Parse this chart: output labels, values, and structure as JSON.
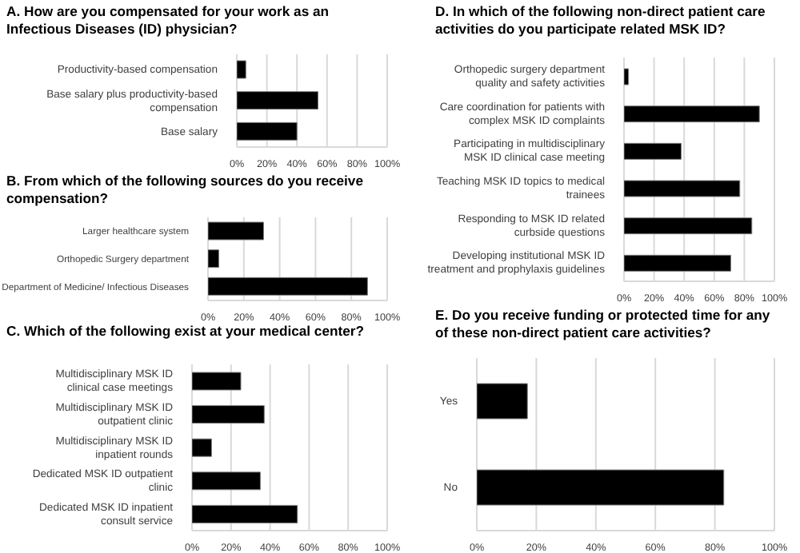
{
  "chart_data": [
    {
      "type": "bar",
      "orientation": "horizontal",
      "title": "A. How are you compensated for your work as an Infectious Diseases (ID) physician?",
      "categories": [
        "Productivity-based compensation",
        "Base salary plus productivity-based compensation",
        "Base salary"
      ],
      "values": [
        6,
        54,
        40
      ],
      "color": "#000000",
      "xlim": [
        0,
        100
      ],
      "xticks": [
        {
          "value": 0,
          "label": "0%"
        },
        {
          "value": 20,
          "label": "20%"
        },
        {
          "value": 40,
          "label": "40%"
        },
        {
          "value": 60,
          "label": "60%"
        },
        {
          "value": 80,
          "label": "80%"
        },
        {
          "value": 100,
          "label": "100%"
        }
      ],
      "grid": "x",
      "legend": false
    },
    {
      "type": "bar",
      "orientation": "horizontal",
      "title": "B. From which of the following sources do you receive compensation?",
      "categories": [
        "Larger healthcare system",
        "Orthopedic Surgery department",
        "Department of Medicine/ Infectious Diseases"
      ],
      "values": [
        31,
        6,
        89
      ],
      "color": "#000000",
      "xlim": [
        0,
        100
      ],
      "xticks": [
        {
          "value": 0,
          "label": "0%"
        },
        {
          "value": 20,
          "label": "20%"
        },
        {
          "value": 40,
          "label": "40%"
        },
        {
          "value": 60,
          "label": "60%"
        },
        {
          "value": 80,
          "label": "80%"
        },
        {
          "value": 100,
          "label": "100%"
        }
      ],
      "grid": "x",
      "legend": false
    },
    {
      "type": "bar",
      "orientation": "horizontal",
      "title": "C. Which of the following exist at your medical center?",
      "categories": [
        "Multidisciplinary MSK ID clinical case meetings",
        "Multidisciplinary MSK ID outpatient clinic",
        "Multidisciplinary MSK ID inpatient rounds",
        "Dedicated MSK ID outpatient clinic",
        "Dedicated MSK ID inpatient consult service"
      ],
      "values": [
        25,
        37,
        10,
        35,
        54
      ],
      "color": "#000000",
      "xlim": [
        0,
        100
      ],
      "xticks": [
        {
          "value": 0,
          "label": "0%"
        },
        {
          "value": 20,
          "label": "20%"
        },
        {
          "value": 40,
          "label": "40%"
        },
        {
          "value": 60,
          "label": "60%"
        },
        {
          "value": 80,
          "label": "80%"
        },
        {
          "value": 100,
          "label": "100%"
        }
      ],
      "grid": "x",
      "legend": false
    },
    {
      "type": "bar",
      "orientation": "horizontal",
      "title": "D. In which of the following non-direct patient care activities do you participate related MSK ID?",
      "categories": [
        "Orthopedic surgery department quality and safety activities",
        "Care coordination for patients with complex MSK ID complaints",
        "Participating in multidisciplinary MSK ID clinical case meeting",
        "Teaching MSK ID topics to medical trainees",
        "Responding to MSK ID related curbside questions",
        "Developing institutional MSK ID treatment and prophylaxis guidelines"
      ],
      "values": [
        3,
        90,
        38,
        77,
        85,
        71
      ],
      "color": "#000000",
      "xlim": [
        0,
        100
      ],
      "xticks": [
        {
          "value": 0,
          "label": "0%"
        },
        {
          "value": 20,
          "label": "20%"
        },
        {
          "value": 40,
          "label": "40%"
        },
        {
          "value": 60,
          "label": "60%"
        },
        {
          "value": 80,
          "label": "80%"
        },
        {
          "value": 100,
          "label": "100%"
        }
      ],
      "grid": "x",
      "legend": false
    },
    {
      "type": "bar",
      "orientation": "horizontal",
      "title": "E. Do you receive funding or protected time for any of these non-direct patient care activities?",
      "categories": [
        "Yes",
        "No"
      ],
      "values": [
        17,
        83
      ],
      "color": "#000000",
      "xlim": [
        0,
        100
      ],
      "xticks": [
        {
          "value": 0,
          "label": "0%"
        },
        {
          "value": 20,
          "label": "20%"
        },
        {
          "value": 40,
          "label": "40%"
        },
        {
          "value": 60,
          "label": "60%"
        },
        {
          "value": 80,
          "label": "80%"
        },
        {
          "value": 100,
          "label": "100%"
        }
      ],
      "grid": "x",
      "legend": false
    }
  ]
}
